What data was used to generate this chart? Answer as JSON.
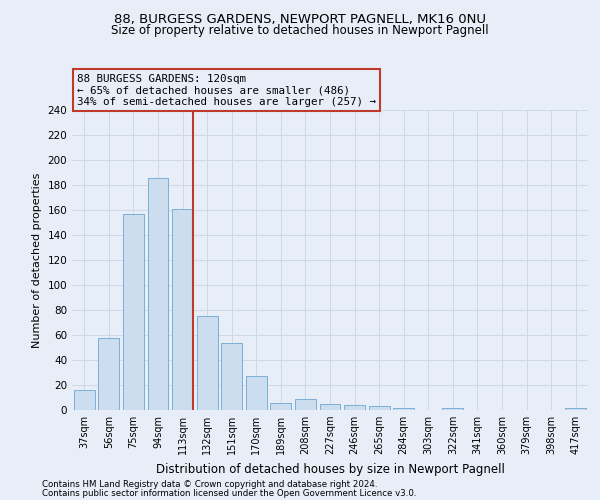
{
  "title1": "88, BURGESS GARDENS, NEWPORT PAGNELL, MK16 0NU",
  "title2": "Size of property relative to detached houses in Newport Pagnell",
  "xlabel": "Distribution of detached houses by size in Newport Pagnell",
  "ylabel": "Number of detached properties",
  "categories": [
    "37sqm",
    "56sqm",
    "75sqm",
    "94sqm",
    "113sqm",
    "132sqm",
    "151sqm",
    "170sqm",
    "189sqm",
    "208sqm",
    "227sqm",
    "246sqm",
    "265sqm",
    "284sqm",
    "303sqm",
    "322sqm",
    "341sqm",
    "360sqm",
    "379sqm",
    "398sqm",
    "417sqm"
  ],
  "values": [
    16,
    58,
    157,
    186,
    161,
    75,
    54,
    27,
    6,
    9,
    5,
    4,
    3,
    2,
    0,
    2,
    0,
    0,
    0,
    0,
    2
  ],
  "bar_color": "#ccddf0",
  "bar_edge_color": "#7aafd4",
  "vline_color": "#c0392b",
  "annotation_title": "88 BURGESS GARDENS: 120sqm",
  "annotation_line1": "← 65% of detached houses are smaller (486)",
  "annotation_line2": "34% of semi-detached houses are larger (257) →",
  "annotation_box_color": "#c0392b",
  "ylim": [
    0,
    240
  ],
  "yticks": [
    0,
    20,
    40,
    60,
    80,
    100,
    120,
    140,
    160,
    180,
    200,
    220,
    240
  ],
  "footnote1": "Contains HM Land Registry data © Crown copyright and database right 2024.",
  "footnote2": "Contains public sector information licensed under the Open Government Licence v3.0.",
  "background_color": "#e8eef8",
  "grid_color": "#d0d8e8",
  "plot_bg_color": "#e8eef8"
}
